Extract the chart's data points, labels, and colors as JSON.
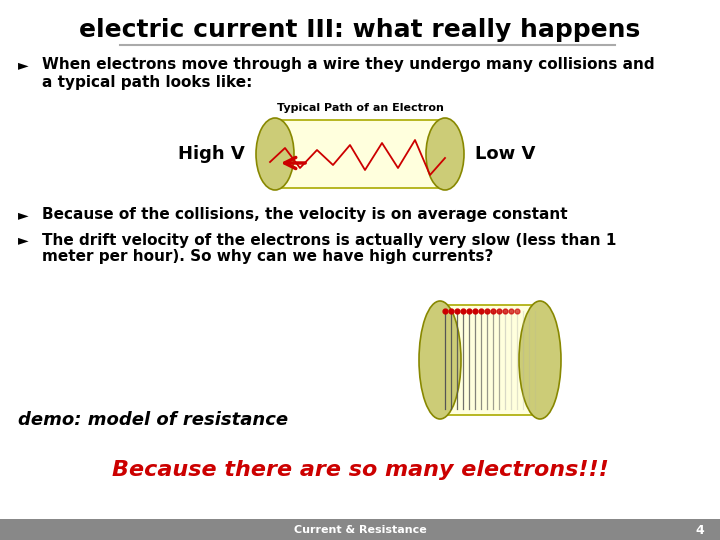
{
  "title": "electric current III: what really happens",
  "title_fontsize": 18,
  "bg_color": "#ffffff",
  "footer_bg": "#888888",
  "footer_text": "Current & Resistance",
  "footer_number": "4",
  "bullet1_line1": "When electrons move through a wire they undergo many collisions and",
  "bullet1_line2": "a typical path looks like:",
  "diagram1_label": "Typical Path of an Electron",
  "high_v": "High V",
  "low_v": "Low V",
  "bullet2": "Because of the collisions, the velocity is on average constant",
  "bullet3_line1": "The drift velocity of the electrons is actually very slow (less than 1",
  "bullet3_line2": "meter per hour). So why can we have high currents?",
  "demo_text": "demo: model of resistance",
  "big_text": "Because there are so many electrons!!!",
  "big_text_color": "#cc0000",
  "wire_fill": "#ffffdd",
  "wire_stroke": "#aaaa00",
  "path_color": "#cc0000",
  "arrow_color": "#cc0000",
  "end_cap_fill": "#cccc77",
  "end_cap_stroke": "#888800",
  "underline_color": "#aaaaaa",
  "bullet_symbol": "Ø",
  "arrow_symbol": "►"
}
